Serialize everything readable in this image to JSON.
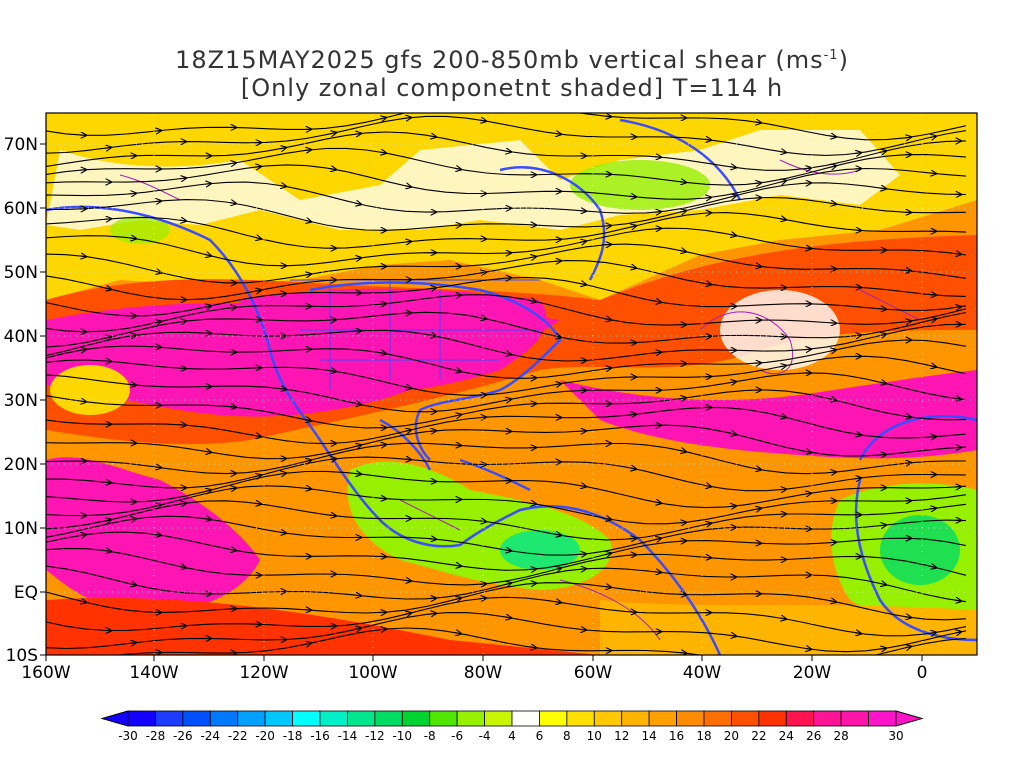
{
  "title": {
    "line1_main": "18Z15MAY2025 gfs 200-850mb vertical shear (ms",
    "line1_sup": "-1",
    "line1_end": ")",
    "line2": "[Only zonal componetnt shaded] T=114 h"
  },
  "lat_labels": [
    "70N",
    "60N",
    "50N",
    "40N",
    "30N",
    "20N",
    "10N",
    "EQ",
    "10S"
  ],
  "lon_labels": [
    "160W",
    "140W",
    "120W",
    "100W",
    "80W",
    "60W",
    "40W",
    "20W",
    "0"
  ],
  "colorbar": {
    "labels": [
      "-30",
      "-28",
      "-26",
      "-24",
      "-22",
      "-20",
      "-18",
      "-16",
      "-14",
      "-12",
      "-10",
      "-8",
      "-6",
      "-4",
      "4",
      "6",
      "8",
      "10",
      "12",
      "14",
      "16",
      "18",
      "20",
      "22",
      "24",
      "26",
      "28",
      "30"
    ],
    "colors": [
      "#1400ff",
      "#1e3cff",
      "#0050ff",
      "#0078ff",
      "#00a0ff",
      "#00c8ff",
      "#00ffff",
      "#00f0c8",
      "#00e68c",
      "#00dc64",
      "#00d232",
      "#50e600",
      "#96f000",
      "#c8f500",
      "#ffffff",
      "#ffff00",
      "#ffe100",
      "#ffc800",
      "#ffb400",
      "#ffa000",
      "#ff8c00",
      "#ff6e00",
      "#ff5000",
      "#ff3200",
      "#ff1450",
      "#ff1496",
      "#ff14aa",
      "#ff14c8"
    ]
  },
  "colors": {
    "coast": "#3a4cff",
    "contour": "#a020c0",
    "streamline": "#000000",
    "jet": "#ff14b4",
    "shear_high": "#ff3c00",
    "shear_mid": "#ff9600",
    "shear_low": "#ffd700",
    "calm": "#ffffff",
    "easterly": "#50e600"
  }
}
